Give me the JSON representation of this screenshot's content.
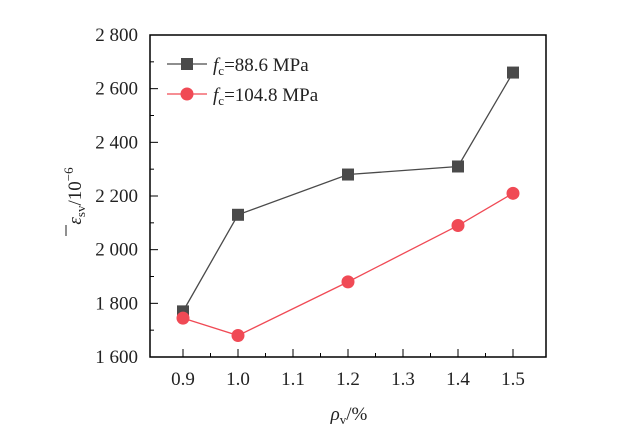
{
  "chart_data": {
    "type": "line",
    "title": "",
    "xlabel": "ρv/%",
    "xlabel_main": "ρ",
    "xlabel_sub": "v",
    "xlabel_unit": "/%",
    "ylabel": "ε̄sv/10−6",
    "ylabel_main": "ε",
    "ylabel_sub": "sv",
    "ylabel_unit": "/10",
    "ylabel_exp": "−6",
    "xlim": [
      0.84,
      1.56
    ],
    "ylim": [
      1600,
      2800
    ],
    "x_ticks": [
      0.9,
      1.0,
      1.1,
      1.2,
      1.3,
      1.4,
      1.5
    ],
    "x_tick_labels": [
      "0.9",
      "1.0",
      "1.1",
      "1.2",
      "1.3",
      "1.4",
      "1.5"
    ],
    "y_ticks": [
      1600,
      1800,
      2000,
      2200,
      2400,
      2600,
      2800
    ],
    "y_tick_labels": [
      "1 600",
      "1 800",
      "2 000",
      "2 200",
      "2 400",
      "2 600",
      "2 800"
    ],
    "grid": false,
    "legend_position": "top-left",
    "x": [
      0.9,
      1.0,
      1.2,
      1.4,
      1.5
    ],
    "series": [
      {
        "name": "fc=88.6 MPa",
        "label_main": "f",
        "label_sub": "c",
        "label_rest": "=88.6 MPa",
        "marker": "square",
        "color": "#4a4a4a",
        "values": [
          1770,
          2130,
          2280,
          2310,
          2660
        ]
      },
      {
        "name": "fc=104.8 MPa",
        "label_main": "f",
        "label_sub": "c",
        "label_rest": "=104.8 MPa",
        "marker": "circle",
        "color": "#f04a55",
        "values": [
          1745,
          1680,
          1880,
          2090,
          2210
        ]
      }
    ]
  }
}
